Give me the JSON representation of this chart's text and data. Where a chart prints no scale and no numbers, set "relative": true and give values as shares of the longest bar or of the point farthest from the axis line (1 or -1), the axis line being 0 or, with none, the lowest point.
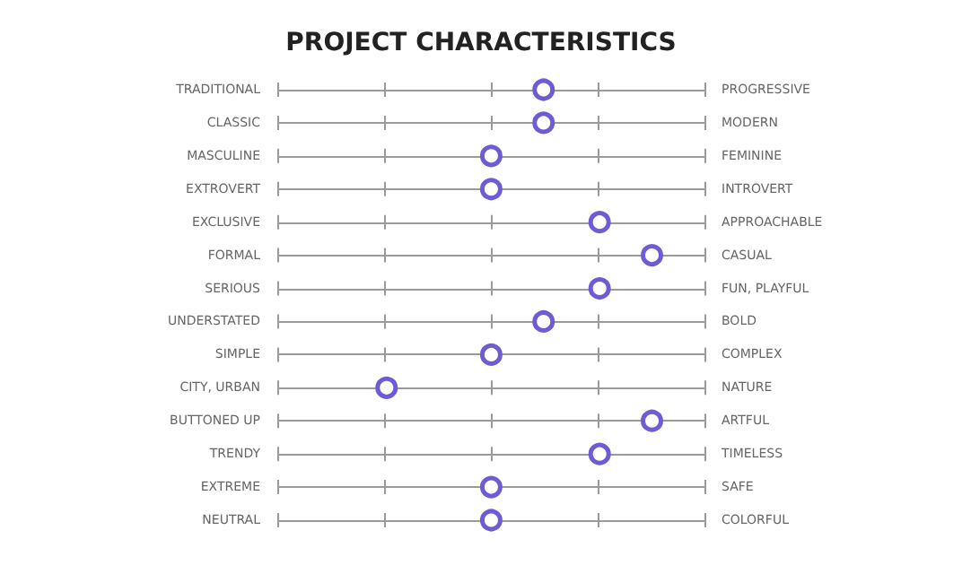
{
  "chart_data": {
    "type": "scatter",
    "title": "PROJECT CHARACTERISTICS",
    "categories": [
      "TRADITIONAL",
      "CLASSIC",
      "MASCULINE",
      "EXTROVERT",
      "EXCLUSIVE",
      "FORMAL",
      "SERIOUS",
      "UNDERSTATED",
      "SIMPLE",
      "CITY, URBAN",
      "BUTTONED UP",
      "TRENDY",
      "EXTREME",
      "NEUTRAL"
    ],
    "y2_categories": [
      "PROGRESSIVE",
      "MODERN",
      "FEMININE",
      "INTROVERT",
      "APPROACHABLE",
      "CASUAL",
      "FUN, PLAYFUL",
      "BOLD",
      "COMPLEX",
      "NATURE",
      "ARTFUL",
      "TIMELESS",
      "SAFE",
      "COLORFUL"
    ],
    "values": [
      0.71,
      0.71,
      0.57,
      0.57,
      0.86,
      1,
      0.86,
      0.71,
      0.57,
      0.29,
      1,
      0.86,
      0.57,
      0.57
    ],
    "color": "#6f5bd3",
    "relative": true,
    "grid": "y",
    "marker": "circle",
    "orientation": "horizontal"
  }
}
